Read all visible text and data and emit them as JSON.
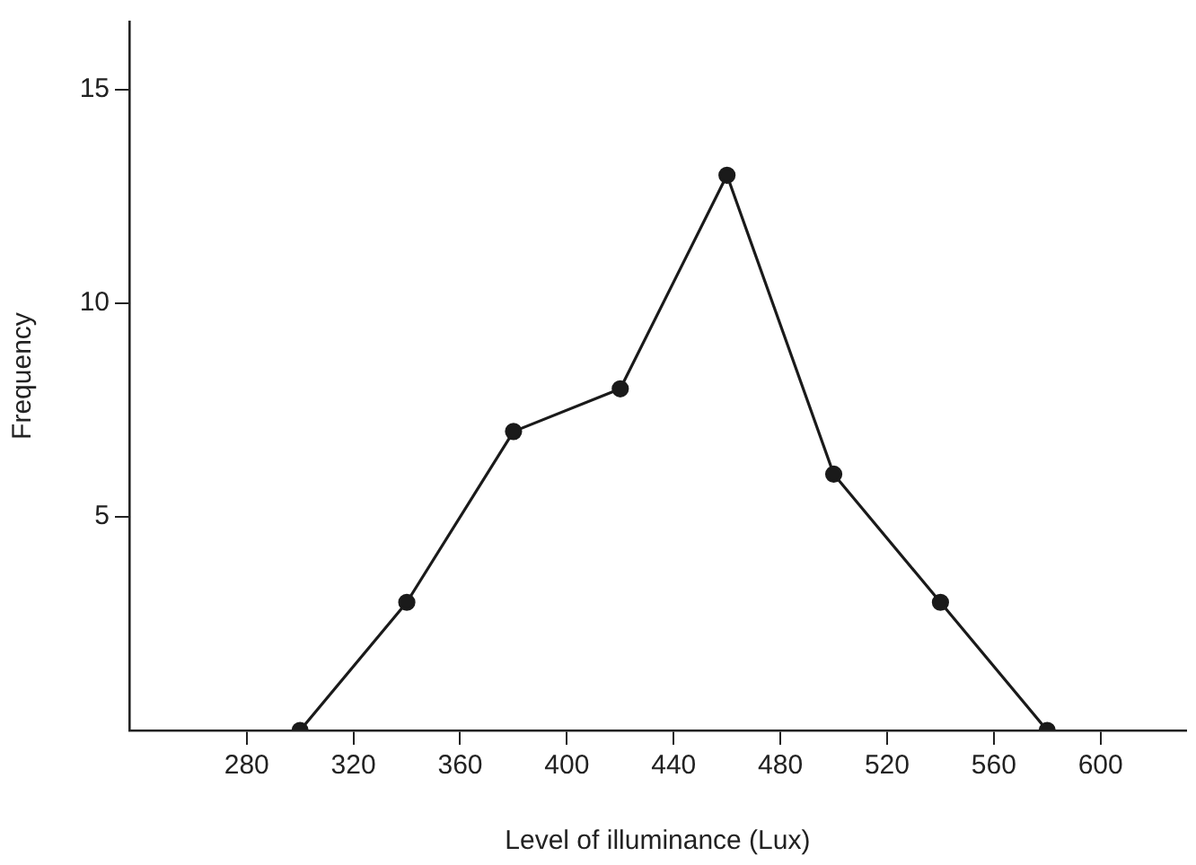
{
  "chart_data": {
    "type": "line",
    "xlabel": "Level of illuminance (Lux)",
    "ylabel": "Frequency",
    "x": [
      300,
      340,
      380,
      420,
      460,
      500,
      540,
      580
    ],
    "series": [
      {
        "color": "#1a1a1a",
        "values": [
          0,
          3,
          7,
          8,
          13,
          6,
          3,
          0
        ]
      }
    ],
    "xlim": [
      236,
      632
    ],
    "xticks": [
      280,
      320,
      360,
      400,
      440,
      480,
      520,
      560,
      600
    ],
    "ylim": [
      0,
      16.6
    ],
    "yticks": [
      5,
      10,
      15
    ],
    "grid": false,
    "legend": false,
    "marker": "circle",
    "line_style": "solid"
  }
}
